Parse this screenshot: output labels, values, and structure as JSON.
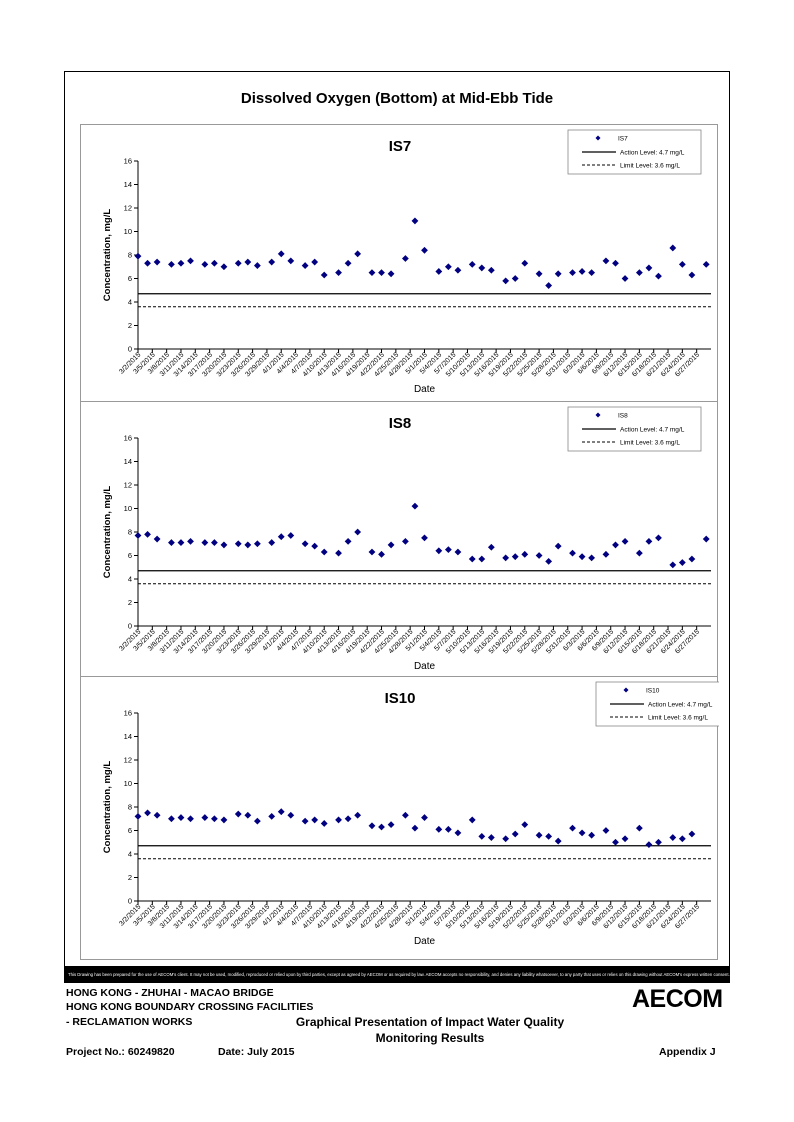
{
  "title": "Dissolved Oxygen (Bottom) at Mid-Ebb Tide",
  "x_tick_labels": [
    "3/2/2015",
    "3/5/2015",
    "3/8/2015",
    "3/11/2015",
    "3/14/2015",
    "3/17/2015",
    "3/20/2015",
    "3/23/2015",
    "3/26/2015",
    "3/29/2015",
    "4/1/2015",
    "4/4/2015",
    "4/7/2015",
    "4/10/2015",
    "4/13/2015",
    "4/16/2015",
    "4/19/2015",
    "4/22/2015",
    "4/25/2015",
    "4/28/2015",
    "5/1/2015",
    "5/4/2015",
    "5/7/2015",
    "5/10/2015",
    "5/13/2015",
    "5/16/2015",
    "5/19/2015",
    "5/22/2015",
    "5/25/2015",
    "5/28/2015",
    "5/31/2015",
    "6/3/2015",
    "6/6/2015",
    "6/9/2015",
    "6/12/2015",
    "6/15/2015",
    "6/18/2015",
    "6/21/2015",
    "6/24/2015",
    "6/27/2015"
  ],
  "chart_data": [
    {
      "type": "scatter",
      "title": "IS7",
      "xlabel": "Date",
      "ylabel": "Concentration, mg/L",
      "ylim": [
        0,
        16
      ],
      "yticks": [
        0,
        2,
        4,
        6,
        8,
        10,
        12,
        14,
        16
      ],
      "series_name": "IS7",
      "action_label": "Action Level: 4.7 mg/L",
      "limit_label": "Limit Level: 3.6 mg/L",
      "action_level": 4.7,
      "limit_level": 3.6,
      "legend": "top-right",
      "points": [
        [
          "3/2/2015",
          7.9
        ],
        [
          "3/4/2015",
          7.3
        ],
        [
          "3/6/2015",
          7.4
        ],
        [
          "3/9/2015",
          7.2
        ],
        [
          "3/11/2015",
          7.3
        ],
        [
          "3/13/2015",
          7.5
        ],
        [
          "3/16/2015",
          7.2
        ],
        [
          "3/18/2015",
          7.3
        ],
        [
          "3/20/2015",
          7.0
        ],
        [
          "3/23/2015",
          7.3
        ],
        [
          "3/25/2015",
          7.4
        ],
        [
          "3/27/2015",
          7.1
        ],
        [
          "3/30/2015",
          7.4
        ],
        [
          "4/1/2015",
          8.1
        ],
        [
          "4/3/2015",
          7.5
        ],
        [
          "4/6/2015",
          7.1
        ],
        [
          "4/8/2015",
          7.4
        ],
        [
          "4/10/2015",
          6.3
        ],
        [
          "4/13/2015",
          6.5
        ],
        [
          "4/15/2015",
          7.3
        ],
        [
          "4/17/2015",
          8.1
        ],
        [
          "4/20/2015",
          6.5
        ],
        [
          "4/22/2015",
          6.5
        ],
        [
          "4/24/2015",
          6.4
        ],
        [
          "4/27/2015",
          7.7
        ],
        [
          "4/29/2015",
          10.9
        ],
        [
          "5/1/2015",
          8.4
        ],
        [
          "5/4/2015",
          6.6
        ],
        [
          "5/6/2015",
          7.0
        ],
        [
          "5/8/2015",
          6.7
        ],
        [
          "5/11/2015",
          7.2
        ],
        [
          "5/13/2015",
          6.9
        ],
        [
          "5/15/2015",
          6.7
        ],
        [
          "5/18/2015",
          5.8
        ],
        [
          "5/20/2015",
          6.0
        ],
        [
          "5/22/2015",
          7.3
        ],
        [
          "5/25/2015",
          6.4
        ],
        [
          "5/27/2015",
          5.4
        ],
        [
          "5/29/2015",
          6.4
        ],
        [
          "6/1/2015",
          6.5
        ],
        [
          "6/3/2015",
          6.6
        ],
        [
          "6/5/2015",
          6.5
        ],
        [
          "6/8/2015",
          7.5
        ],
        [
          "6/10/2015",
          7.3
        ],
        [
          "6/12/2015",
          6.0
        ],
        [
          "6/15/2015",
          6.5
        ],
        [
          "6/17/2015",
          6.9
        ],
        [
          "6/19/2015",
          6.2
        ],
        [
          "6/22/2015",
          8.6
        ],
        [
          "6/24/2015",
          7.2
        ],
        [
          "6/26/2015",
          6.3
        ],
        [
          "6/29/2015",
          7.2
        ]
      ]
    },
    {
      "type": "scatter",
      "title": "IS8",
      "xlabel": "Date",
      "ylabel": "Concentration, mg/L",
      "ylim": [
        0,
        16
      ],
      "yticks": [
        0,
        2,
        4,
        6,
        8,
        10,
        12,
        14,
        16
      ],
      "series_name": "IS8",
      "action_label": "Action Level: 4.7 mg/L",
      "limit_label": "Limit Level: 3.6 mg/L",
      "action_level": 4.7,
      "limit_level": 3.6,
      "legend": "top-right",
      "points": [
        [
          "3/2/2015",
          7.7
        ],
        [
          "3/4/2015",
          7.8
        ],
        [
          "3/6/2015",
          7.4
        ],
        [
          "3/9/2015",
          7.1
        ],
        [
          "3/11/2015",
          7.1
        ],
        [
          "3/13/2015",
          7.2
        ],
        [
          "3/16/2015",
          7.1
        ],
        [
          "3/18/2015",
          7.1
        ],
        [
          "3/20/2015",
          6.9
        ],
        [
          "3/23/2015",
          7.0
        ],
        [
          "3/25/2015",
          6.9
        ],
        [
          "3/27/2015",
          7.0
        ],
        [
          "3/30/2015",
          7.1
        ],
        [
          "4/1/2015",
          7.6
        ],
        [
          "4/3/2015",
          7.7
        ],
        [
          "4/6/2015",
          7.0
        ],
        [
          "4/8/2015",
          6.8
        ],
        [
          "4/10/2015",
          6.3
        ],
        [
          "4/13/2015",
          6.2
        ],
        [
          "4/15/2015",
          7.2
        ],
        [
          "4/17/2015",
          8.0
        ],
        [
          "4/20/2015",
          6.3
        ],
        [
          "4/22/2015",
          6.1
        ],
        [
          "4/24/2015",
          6.9
        ],
        [
          "4/27/2015",
          7.2
        ],
        [
          "4/29/2015",
          10.2
        ],
        [
          "5/1/2015",
          7.5
        ],
        [
          "5/4/2015",
          6.4
        ],
        [
          "5/6/2015",
          6.5
        ],
        [
          "5/8/2015",
          6.3
        ],
        [
          "5/11/2015",
          5.7
        ],
        [
          "5/13/2015",
          5.7
        ],
        [
          "5/15/2015",
          6.7
        ],
        [
          "5/18/2015",
          5.8
        ],
        [
          "5/20/2015",
          5.9
        ],
        [
          "5/22/2015",
          6.1
        ],
        [
          "5/25/2015",
          6.0
        ],
        [
          "5/27/2015",
          5.5
        ],
        [
          "5/29/2015",
          6.8
        ],
        [
          "6/1/2015",
          6.2
        ],
        [
          "6/3/2015",
          5.9
        ],
        [
          "6/5/2015",
          5.8
        ],
        [
          "6/8/2015",
          6.1
        ],
        [
          "6/10/2015",
          6.9
        ],
        [
          "6/12/2015",
          7.2
        ],
        [
          "6/15/2015",
          6.2
        ],
        [
          "6/17/2015",
          7.2
        ],
        [
          "6/19/2015",
          7.5
        ],
        [
          "6/22/2015",
          5.2
        ],
        [
          "6/24/2015",
          5.4
        ],
        [
          "6/26/2015",
          5.7
        ],
        [
          "6/29/2015",
          7.4
        ]
      ]
    },
    {
      "type": "scatter",
      "title": "IS10",
      "xlabel": "Date",
      "ylabel": "Concentration, mg/L",
      "ylim": [
        0,
        16
      ],
      "yticks": [
        0,
        2,
        4,
        6,
        8,
        10,
        12,
        14,
        16
      ],
      "series_name": "IS10",
      "action_label": "Action Level: 4.7 mg/L",
      "limit_label": "Limit Level: 3.6 mg/L",
      "action_level": 4.7,
      "limit_level": 3.6,
      "legend": "top-right",
      "points": [
        [
          "3/2/2015",
          7.2
        ],
        [
          "3/4/2015",
          7.5
        ],
        [
          "3/6/2015",
          7.3
        ],
        [
          "3/9/2015",
          7.0
        ],
        [
          "3/11/2015",
          7.1
        ],
        [
          "3/13/2015",
          7.0
        ],
        [
          "3/16/2015",
          7.1
        ],
        [
          "3/18/2015",
          7.0
        ],
        [
          "3/20/2015",
          6.9
        ],
        [
          "3/23/2015",
          7.4
        ],
        [
          "3/25/2015",
          7.3
        ],
        [
          "3/27/2015",
          6.8
        ],
        [
          "3/30/2015",
          7.2
        ],
        [
          "4/1/2015",
          7.6
        ],
        [
          "4/3/2015",
          7.3
        ],
        [
          "4/6/2015",
          6.8
        ],
        [
          "4/8/2015",
          6.9
        ],
        [
          "4/10/2015",
          6.6
        ],
        [
          "4/13/2015",
          6.9
        ],
        [
          "4/15/2015",
          7.0
        ],
        [
          "4/17/2015",
          7.3
        ],
        [
          "4/20/2015",
          6.4
        ],
        [
          "4/22/2015",
          6.3
        ],
        [
          "4/24/2015",
          6.5
        ],
        [
          "4/27/2015",
          7.3
        ],
        [
          "4/29/2015",
          6.2
        ],
        [
          "5/1/2015",
          7.1
        ],
        [
          "5/4/2015",
          6.1
        ],
        [
          "5/6/2015",
          6.1
        ],
        [
          "5/8/2015",
          5.8
        ],
        [
          "5/11/2015",
          6.9
        ],
        [
          "5/13/2015",
          5.5
        ],
        [
          "5/15/2015",
          5.4
        ],
        [
          "5/18/2015",
          5.3
        ],
        [
          "5/20/2015",
          5.7
        ],
        [
          "5/22/2015",
          6.5
        ],
        [
          "5/25/2015",
          5.6
        ],
        [
          "5/27/2015",
          5.5
        ],
        [
          "5/29/2015",
          5.1
        ],
        [
          "6/1/2015",
          6.2
        ],
        [
          "6/3/2015",
          5.8
        ],
        [
          "6/5/2015",
          5.6
        ],
        [
          "6/8/2015",
          6.0
        ],
        [
          "6/10/2015",
          5.0
        ],
        [
          "6/12/2015",
          5.3
        ],
        [
          "6/15/2015",
          6.2
        ],
        [
          "6/17/2015",
          4.8
        ],
        [
          "6/19/2015",
          5.0
        ],
        [
          "6/22/2015",
          5.4
        ],
        [
          "6/24/2015",
          5.3
        ],
        [
          "6/26/2015",
          5.7
        ]
      ]
    }
  ],
  "footer": {
    "disclaimer": "This Drawing has been prepared for the use of AECOM's client. It may not be used, modified, reproduced or relied upon by third parties, except as agreed by AECOM or as required by law. AECOM accepts no responsibility, and denies any liability whatsoever, to any party that uses or relies on this drawing without AECOM's express written consent.",
    "project_line1": "HONG KONG - ZHUHAI - MACAO BRIDGE",
    "project_line2": "HONG KONG BOUNDARY CROSSING FACILITIES",
    "project_line3": "- RECLAMATION WORKS",
    "report_title_line1": "Graphical Presentation of Impact Water Quality",
    "report_title_line2": "Monitoring Results",
    "project_no": "Project No.: 60249820",
    "date": "Date: July 2015",
    "appendix": "Appendix J",
    "logo": "AECOM"
  }
}
